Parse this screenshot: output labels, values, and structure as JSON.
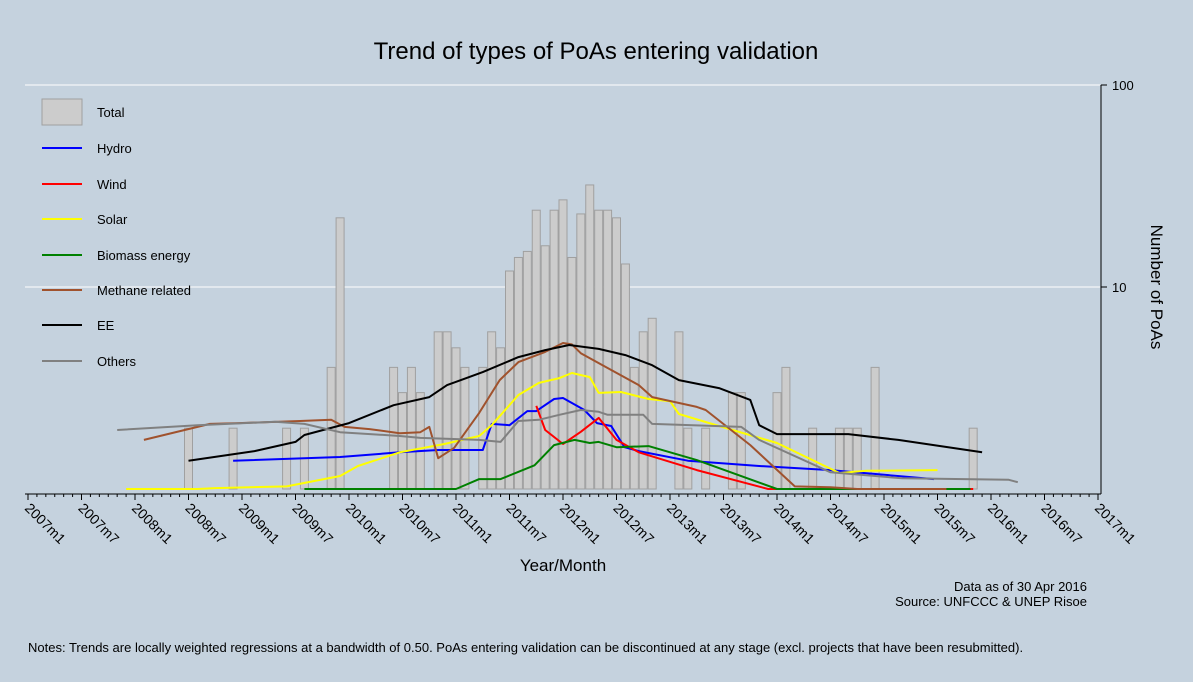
{
  "chart_data": {
    "type": "bar+line",
    "title": "Trend of types of PoAs entering validation",
    "xlabel": "Year/Month",
    "ylabel": "Number of PoAs",
    "yscale": "log",
    "ylim": [
      1,
      100
    ],
    "yticks": [
      {
        "value": 10,
        "label": "10"
      },
      {
        "value": 100,
        "label": "100"
      }
    ],
    "x_start": "2007m1",
    "x_unit": "month index from 2007m1",
    "xlim": [
      0,
      120
    ],
    "xtick_labels": [
      "2007m1",
      "2007m7",
      "2008m1",
      "2008m7",
      "2009m1",
      "2009m7",
      "2010m1",
      "2010m7",
      "2011m1",
      "2011m7",
      "2012m1",
      "2012m7",
      "2013m1",
      "2013m7",
      "2014m1",
      "2014m7",
      "2015m1",
      "2015m7",
      "2016m1",
      "2016m7",
      "2017m1"
    ],
    "grid": true,
    "legend_position": "top-left",
    "bars": {
      "name": "Total",
      "color": "#cccccc",
      "points": [
        [
          18,
          2
        ],
        [
          23,
          2
        ],
        [
          29,
          2
        ],
        [
          31,
          2
        ],
        [
          34,
          4
        ],
        [
          35,
          22
        ],
        [
          41,
          4
        ],
        [
          42,
          3
        ],
        [
          43,
          4
        ],
        [
          44,
          3
        ],
        [
          46,
          6
        ],
        [
          47,
          6
        ],
        [
          48,
          5
        ],
        [
          49,
          4
        ],
        [
          51,
          4
        ],
        [
          52,
          6
        ],
        [
          53,
          5
        ],
        [
          54,
          12
        ],
        [
          55,
          14
        ],
        [
          56,
          15
        ],
        [
          57,
          24
        ],
        [
          58,
          16
        ],
        [
          59,
          24
        ],
        [
          60,
          27
        ],
        [
          61,
          14
        ],
        [
          62,
          23
        ],
        [
          63,
          32
        ],
        [
          64,
          24
        ],
        [
          65,
          24
        ],
        [
          66,
          22
        ],
        [
          67,
          13
        ],
        [
          68,
          4
        ],
        [
          69,
          6
        ],
        [
          70,
          7
        ],
        [
          73,
          6
        ],
        [
          74,
          2
        ],
        [
          76,
          2
        ],
        [
          79,
          3
        ],
        [
          80,
          3
        ],
        [
          84,
          3
        ],
        [
          85,
          4
        ],
        [
          88,
          2
        ],
        [
          91,
          2
        ],
        [
          92,
          2
        ],
        [
          93,
          2
        ],
        [
          95,
          4
        ],
        [
          106,
          2
        ]
      ]
    },
    "series": [
      {
        "name": "Hydro",
        "color": "#0000ff",
        "points": [
          [
            23,
            1.38
          ],
          [
            35,
            1.44
          ],
          [
            41.7,
            1.52
          ],
          [
            46,
            1.56
          ],
          [
            51,
            1.56
          ],
          [
            52,
            2.1
          ],
          [
            54,
            2.07
          ],
          [
            56,
            2.43
          ],
          [
            57,
            2.43
          ],
          [
            59,
            2.79
          ],
          [
            60,
            2.82
          ],
          [
            62.4,
            2.46
          ],
          [
            63.8,
            2.12
          ],
          [
            65.4,
            2.05
          ],
          [
            66.9,
            1.61
          ],
          [
            68.5,
            1.54
          ],
          [
            74,
            1.38
          ],
          [
            82,
            1.3
          ],
          [
            90,
            1.24
          ],
          [
            101.6,
            1.12
          ]
        ]
      },
      {
        "name": "Wind",
        "color": "#ff0000",
        "points": [
          [
            57,
            2.58
          ],
          [
            58,
            1.96
          ],
          [
            60,
            1.67
          ],
          [
            62,
            1.92
          ],
          [
            64,
            2.25
          ],
          [
            66,
            1.75
          ],
          [
            68.5,
            1.52
          ],
          [
            75,
            1.24
          ],
          [
            83,
            1.0
          ],
          [
            106,
            1.0
          ]
        ]
      },
      {
        "name": "Solar",
        "color": "#ffff00",
        "points": [
          [
            11,
            1.0
          ],
          [
            19,
            1.0
          ],
          [
            21,
            1.01
          ],
          [
            29,
            1.03
          ],
          [
            35,
            1.16
          ],
          [
            37,
            1.3
          ],
          [
            41.7,
            1.52
          ],
          [
            46.7,
            1.67
          ],
          [
            50.6,
            1.83
          ],
          [
            52,
            2.07
          ],
          [
            55,
            2.92
          ],
          [
            57.3,
            3.35
          ],
          [
            59.6,
            3.54
          ],
          [
            61,
            3.75
          ],
          [
            63,
            3.58
          ],
          [
            64,
            2.99
          ],
          [
            66.5,
            3.02
          ],
          [
            69.6,
            2.79
          ],
          [
            72,
            2.72
          ],
          [
            73,
            2.35
          ],
          [
            77.5,
            2.05
          ],
          [
            84,
            1.69
          ],
          [
            91,
            1.2
          ],
          [
            94,
            1.23
          ],
          [
            102,
            1.24
          ]
        ]
      },
      {
        "name": "Biomass energy",
        "color": "#008000",
        "points": [
          [
            31,
            1.0
          ],
          [
            48,
            1.0
          ],
          [
            50.6,
            1.12
          ],
          [
            53,
            1.12
          ],
          [
            56.8,
            1.31
          ],
          [
            59,
            1.65
          ],
          [
            61.3,
            1.75
          ],
          [
            63,
            1.69
          ],
          [
            64,
            1.71
          ],
          [
            66,
            1.61
          ],
          [
            69.6,
            1.63
          ],
          [
            75,
            1.39
          ],
          [
            84,
            1.0
          ],
          [
            105.7,
            1.0
          ]
        ]
      },
      {
        "name": "Methane related",
        "color": "#a0522d",
        "points": [
          [
            13,
            1.75
          ],
          [
            20.4,
            2.1
          ],
          [
            23.7,
            2.12
          ],
          [
            30.5,
            2.17
          ],
          [
            34,
            2.2
          ],
          [
            35.5,
            2.03
          ],
          [
            38.3,
            1.98
          ],
          [
            41.7,
            1.89
          ],
          [
            44,
            1.91
          ],
          [
            45,
            2.03
          ],
          [
            46,
            1.42
          ],
          [
            47.8,
            1.6
          ],
          [
            50.6,
            2.38
          ],
          [
            52.9,
            3.46
          ],
          [
            55,
            4.25
          ],
          [
            58,
            4.77
          ],
          [
            60,
            5.28
          ],
          [
            61,
            5.2
          ],
          [
            62,
            4.7
          ],
          [
            65,
            3.97
          ],
          [
            68.5,
            3.27
          ],
          [
            70,
            2.85
          ],
          [
            75,
            2.55
          ],
          [
            76,
            2.46
          ],
          [
            81,
            1.65
          ],
          [
            86,
            1.03
          ],
          [
            90,
            1.02
          ],
          [
            93,
            1.0
          ],
          [
            103,
            1.0
          ]
        ]
      },
      {
        "name": "EE",
        "color": "#000000",
        "points": [
          [
            18,
            1.38
          ],
          [
            25.4,
            1.54
          ],
          [
            30,
            1.71
          ],
          [
            31,
            1.85
          ],
          [
            36,
            2.12
          ],
          [
            41,
            2.6
          ],
          [
            45,
            2.85
          ],
          [
            47,
            3.27
          ],
          [
            51,
            3.79
          ],
          [
            55,
            4.5
          ],
          [
            58,
            4.87
          ],
          [
            60.7,
            5.16
          ],
          [
            64,
            4.94
          ],
          [
            67,
            4.6
          ],
          [
            70,
            4.1
          ],
          [
            73,
            3.46
          ],
          [
            77.5,
            3.16
          ],
          [
            81,
            2.76
          ],
          [
            82,
            2.07
          ],
          [
            84,
            1.87
          ],
          [
            92,
            1.87
          ],
          [
            97.6,
            1.75
          ],
          [
            107,
            1.52
          ]
        ]
      },
      {
        "name": "Others",
        "color": "#808080",
        "points": [
          [
            10,
            1.96
          ],
          [
            19,
            2.07
          ],
          [
            27.7,
            2.15
          ],
          [
            31,
            2.1
          ],
          [
            35,
            1.91
          ],
          [
            41.7,
            1.83
          ],
          [
            44,
            1.79
          ],
          [
            50.6,
            1.75
          ],
          [
            53,
            1.71
          ],
          [
            55,
            2.17
          ],
          [
            57.3,
            2.2
          ],
          [
            59.6,
            2.33
          ],
          [
            62,
            2.46
          ],
          [
            64,
            2.41
          ],
          [
            65,
            2.33
          ],
          [
            69,
            2.33
          ],
          [
            70,
            2.1
          ],
          [
            80,
            2.03
          ],
          [
            82,
            1.75
          ],
          [
            90,
            1.21
          ],
          [
            98,
            1.13
          ],
          [
            110,
            1.11
          ],
          [
            111,
            1.08
          ]
        ]
      }
    ],
    "legend": [
      "Total",
      "Hydro",
      "Wind",
      "Solar",
      "Biomass energy",
      "Methane related",
      "EE",
      "Others"
    ]
  },
  "footer": {
    "data_as_of": "Data as of 30 Apr 2016",
    "source": "Source: UNFCCC & UNEP Risoe",
    "notes": "Notes: Trends are locally weighted regressions at a bandwidth of 0.50. PoAs entering validation can be discontinued at any stage (excl. projects that have been resubmitted)."
  }
}
